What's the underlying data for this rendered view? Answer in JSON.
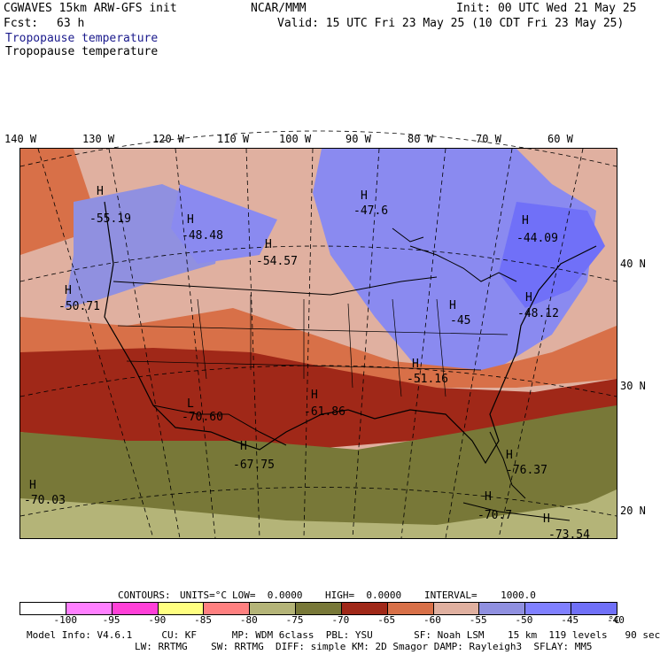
{
  "header": {
    "model": "CGWAVES 15km ARW-GFS init",
    "org": "NCAR/MMM",
    "init": "Init: 00 UTC Wed 21 May 25",
    "fcst_label": "Fcst:",
    "fcst_value": "63 h",
    "valid": "Valid: 15 UTC Fri 23 May 25 (10 CDT Fri 23 May 25)",
    "field_title": "Tropopause temperature",
    "field_subtitle": "Tropopause temperature"
  },
  "map": {
    "lon_labels": [
      "140 W",
      "130 W",
      "120 W",
      "110 W",
      "100 W",
      "90 W",
      "80 W",
      "70 W",
      "60 W"
    ],
    "lat_labels": [
      "40 N",
      "30 N",
      "20 N"
    ],
    "extrema": [
      {
        "type": "H",
        "value": "-55.19"
      },
      {
        "type": "H",
        "value": "-48.48"
      },
      {
        "type": "H",
        "value": "-54.57"
      },
      {
        "type": "H",
        "value": "-47.6"
      },
      {
        "type": "H",
        "value": "-44.09"
      },
      {
        "type": "H",
        "value": "-50.71"
      },
      {
        "type": "H",
        "value": "-48.12"
      },
      {
        "type": "H",
        "value": "-45"
      },
      {
        "type": "H",
        "value": "-51.16"
      },
      {
        "type": "L",
        "value": "-70.60"
      },
      {
        "type": "H",
        "value": "-61.86"
      },
      {
        "type": "H",
        "value": "-67.75"
      },
      {
        "type": "H",
        "value": "-70.03"
      },
      {
        "type": "H",
        "value": "-76.37"
      },
      {
        "type": "H",
        "value": "-70.7"
      },
      {
        "type": "H",
        "value": "-73.54"
      }
    ]
  },
  "contours": {
    "label": "CONTOURS:",
    "units": "UNITS=°C",
    "low": "LOW=  0.0000",
    "high": "HIGH=  0.0000",
    "interval": "INTERVAL=    1000.0"
  },
  "colorbar": {
    "colors": [
      "#ffffff",
      "#ff80ff",
      "#ff40d8",
      "#ffff80",
      "#ff8080",
      "#b4b478",
      "#787838",
      "#a02818",
      "#d87048",
      "#e0b0a0",
      "#9090e0",
      "#8080ff",
      "#7070f8"
    ],
    "labels": [
      "-100",
      "-95",
      "-90",
      "-85",
      "-80",
      "-75",
      "-70",
      "-65",
      "-60",
      "-55",
      "-50",
      "-45",
      "-40",
      "°C"
    ]
  },
  "footer": {
    "line1": "Model Info: V4.6.1     CU: KF      MP: WDM 6class  PBL: YSU       SF: Noah LSM    15 km  119 levels   90 sec",
    "line2": "LW: RRTMG    SW: RRTMG  DIFF: simple KM: 2D Smagor DAMP: Rayleigh3  SFLAY: MM5"
  }
}
